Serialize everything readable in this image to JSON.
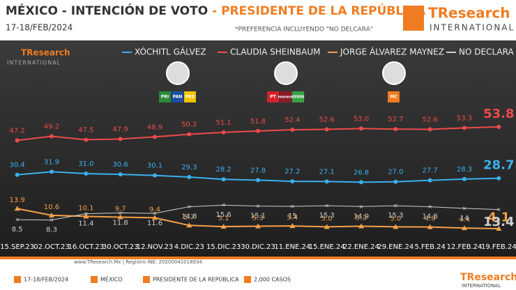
{
  "header": {
    "title_a": "MÉXICO - INTENCIÓN DE VOTO",
    "title_b": "- PRESIDENTE DE LA REPÚBLICA",
    "date": "17-18/FEB/2024",
    "note": "*PREFERENCIA INCLUYENDO \"NO DELCARA\"",
    "logo": "TResearch",
    "logo_sub": "INTERNATIONAL"
  },
  "parties": [
    [
      "PRI",
      "PAN",
      "PRD"
    ],
    [
      "PT",
      "morena",
      "VERDE"
    ],
    [
      "MC"
    ]
  ],
  "chart_data": {
    "type": "line",
    "categories": [
      "15.SEP.23",
      "02.OCT.23",
      "16.OCT.23",
      "30.OCT.23",
      "12.NOV.23",
      "4.DIC.23",
      "15.DIC.23",
      "30.DIC.23",
      "11.ENE.24",
      "15.ENE.24",
      "22.ENE.24",
      "29.ENE.24",
      "5.FEB.24",
      "12.FEB.24",
      "19.FEB.24"
    ],
    "series": [
      {
        "name": "XÓCHITL GÁLVEZ",
        "color": "#3ab0ef",
        "values": [
          30.4,
          31.9,
          31,
          30.6,
          30.1,
          29.3,
          28.2,
          27.8,
          27.2,
          27.1,
          26.8,
          27,
          27.7,
          28.3,
          28.7
        ],
        "value_labels": [
          "30.4",
          "31.9",
          "31.0",
          "30.6",
          "30.1",
          "29.3",
          "28.2",
          "27.8",
          "27.2",
          "27.1",
          "26.8",
          "27.0",
          "27.7",
          "28.3",
          "28.7"
        ]
      },
      {
        "name": "CLAUDIA SHEINBAUM",
        "color": "#ee4a4a",
        "values": [
          47.2,
          49.2,
          47.5,
          47.9,
          48.9,
          50.2,
          51.1,
          51.8,
          52.4,
          52.6,
          53,
          52.7,
          52.6,
          53.3,
          53.8
        ],
        "value_labels": [
          "47.2",
          "49.2",
          "47.5",
          "47.9",
          "48.9",
          "50.2",
          "51.1",
          "51.8",
          "52.4",
          "52.6",
          "53.0",
          "52.7",
          "52.6",
          "53.3",
          "53.8"
        ]
      },
      {
        "name": "JORGE ÁLVAREZ MAYNEZ",
        "color": "#f5a04a",
        "values": [
          13.9,
          10.6,
          10.1,
          9.7,
          9.4,
          5.7,
          5.1,
          5.3,
          5.4,
          5,
          5.3,
          5,
          4.9,
          4.4,
          4.1
        ],
        "value_labels": [
          "13.9",
          "10.6",
          "10.1",
          "9.7",
          "9.4",
          "5.7",
          "5.1",
          "5.3",
          "5.4",
          "5.0",
          "5.3",
          "5.0",
          "4.9",
          "4.4",
          "4.1"
        ]
      },
      {
        "name": "NO DECLARA",
        "color": "#cfcfcf",
        "values": [
          8.5,
          8.3,
          11.4,
          11.8,
          11.6,
          14.8,
          15.6,
          15.1,
          15,
          15.3,
          14.9,
          15.3,
          14.8,
          14,
          13.4
        ]
      }
    ]
  },
  "footer": {
    "source": "www.TResearch.Mx | Registro INE: 20200041018934",
    "items": [
      "17-18/FEB/2024",
      "MÉXICO",
      "PRESIDENTE DE LA REPÚBLICA",
      "2,000 CASOS"
    ]
  }
}
